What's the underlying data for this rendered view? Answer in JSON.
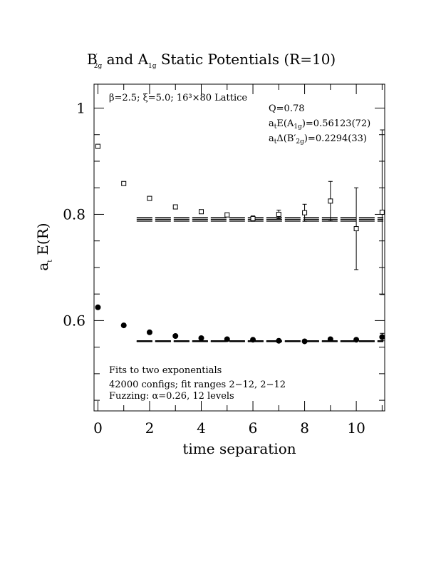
{
  "chart_data": {
    "type": "scatter",
    "title_parts": {
      "B": "B",
      "prime_sub": "′",
      "two_g": "2g",
      "and": " and A",
      "one_g": "1g",
      "rest": " Static Potentials (R=10)"
    },
    "xlabel": "time separation",
    "ylabel_main": "a",
    "ylabel_sub": "t",
    "ylabel_rest": " E(R)",
    "xlim": [
      -0.15,
      11.1
    ],
    "ylim": [
      0.43,
      1.045
    ],
    "xticks": [
      0,
      2,
      4,
      6,
      8,
      10
    ],
    "xtick_labels": [
      "0",
      "2",
      "4",
      "6",
      "8",
      "10"
    ],
    "yticks": [
      0.6,
      0.8,
      1.0
    ],
    "ytick_labels": [
      "0.6",
      "0.8",
      "1"
    ],
    "annotations": {
      "lattice": "β=2.5; ξ=5.0; 16³×80 Lattice",
      "q": "Q=0.78",
      "a1g_pre": "a",
      "a1g_t": "t",
      "a1g_mid": "E(A",
      "a1g_sub": "1g",
      "a1g_val": ")=0.56123(72)",
      "b2g_pre": "a",
      "b2g_t": "t",
      "b2g_mid": "Δ(B′",
      "b2g_sub": "2g",
      "b2g_val": ")=0.2294(33)",
      "fits": "Fits to two exponentials",
      "configs": "42000 configs; fit ranges 2−12, 2−12",
      "fuzzing": "Fuzzing: α=0.26, 12 levels"
    },
    "series": [
      {
        "name": "A1g",
        "marker": "filled-circle",
        "x": [
          0,
          1,
          2,
          3,
          4,
          5,
          6,
          7,
          8,
          9,
          10,
          11
        ],
        "y": [
          0.625,
          0.591,
          0.578,
          0.571,
          0.567,
          0.565,
          0.564,
          0.562,
          0.561,
          0.565,
          0.564,
          0.569
        ],
        "err": [
          0.001,
          0.001,
          0.001,
          0.002,
          0.002,
          0.002,
          0.002,
          0.002,
          0.003,
          0.003,
          0.004,
          0.007
        ]
      },
      {
        "name": "B2g",
        "marker": "open-square",
        "x": [
          0,
          1,
          2,
          3,
          4,
          5,
          6,
          7,
          8,
          9,
          10,
          11
        ],
        "y": [
          0.928,
          0.858,
          0.83,
          0.814,
          0.805,
          0.799,
          0.792,
          0.8,
          0.803,
          0.825,
          0.773,
          0.804
        ],
        "err": [
          0.001,
          0.001,
          0.002,
          0.003,
          0.003,
          0.004,
          0.005,
          0.008,
          0.016,
          0.037,
          0.077,
          0.155
        ]
      }
    ],
    "fits": [
      {
        "name": "A1g fit",
        "x_start": 1.5,
        "x_end": 11.1,
        "value": 0.56123,
        "error": 0.00072
      },
      {
        "name": "B2g fit",
        "x_start": 1.5,
        "x_end": 11.1,
        "value": 0.79063,
        "error": 0.0034
      }
    ]
  }
}
